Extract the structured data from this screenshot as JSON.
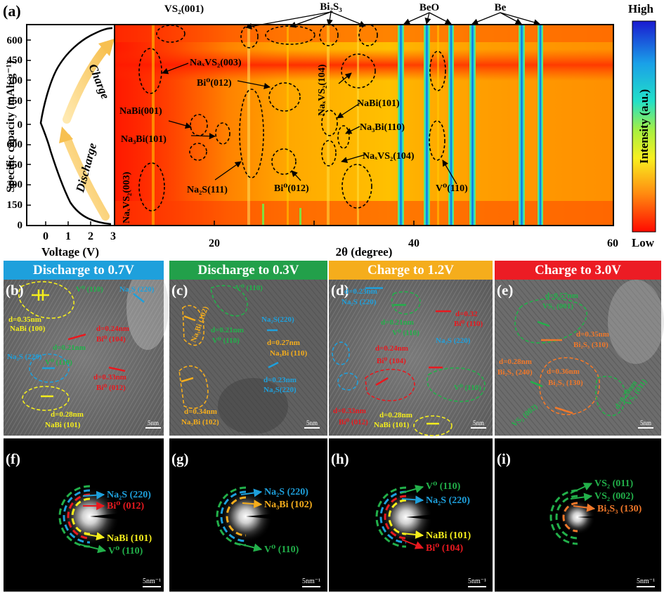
{
  "figure": {
    "panel_a": {
      "label": "(a)",
      "y_axis_label": "Specific capacity (mAh g⁻¹)",
      "y_ticks_upper": [
        "600",
        "450",
        "300",
        "150",
        "0"
      ],
      "y_ticks_lower": [
        "600",
        "450",
        "300",
        "150",
        "0"
      ],
      "voltage_axis_label": "Voltage (V)",
      "voltage_ticks": [
        "0",
        "1",
        "2",
        "3"
      ],
      "two_theta_label": "2θ (degree)",
      "two_theta_ticks": [
        "20",
        "40",
        "60"
      ],
      "arrow_labels": {
        "charge": "Charge",
        "discharge": "Discharge"
      },
      "colorbar": {
        "high": "High",
        "low": "Low",
        "label": "Intensity (a.u.)"
      },
      "top_labels": {
        "vs2": "VS₂(001)",
        "bi2s3": "Bi₂S₃",
        "beo": "BeO",
        "be": "Be"
      },
      "annotations": {
        "naxvs2_003_top": "NaₓVS₂(003)",
        "bi0_012_top": "Bi⁰(012)",
        "naxvs2_104_top": "NaₓVS₂(104)",
        "nabi_001": "NaBi(001)",
        "nabi_101": "NaBi(101)",
        "na3bi_101": "Na₃Bi(101)",
        "na3bi_110": "Na₃Bi(110)",
        "naxvs2_104_bot": "NaₓVS₂(104)",
        "na2s_111": "Na₂S(111)",
        "bi0_012_bot": "Bi⁰(012)",
        "v0_110": "V⁰(110)",
        "naxvs2_003_bot": "NaₓVS₂(003)"
      }
    },
    "banners": [
      {
        "label": "Discharge to 0.7V",
        "color": "#1ea0dc"
      },
      {
        "label": "Discharge to 0.3V",
        "color": "#22a04a"
      },
      {
        "label": "Charge to 1.2V",
        "color": "#f5ad1c"
      },
      {
        "label": "Charge to 3.0V",
        "color": "#ec1c24"
      }
    ],
    "tem_panels": [
      {
        "label": "(b)",
        "scale": "5nm",
        "annotations": [
          "d=0.35nm",
          "NaBi (100)",
          "Na₂S (220)",
          "d=0.21nm",
          "V⁰ (110)",
          "d=0.24nm",
          "Bi⁰ (104)",
          "d=0.33nm",
          "Bi⁰ (012)",
          "d=0.28nm",
          "NaBi (101)",
          "V⁰ (110)",
          "Na₂S (220)"
        ]
      },
      {
        "label": "(c)",
        "scale": "5nm",
        "annotations": [
          "Na₃Bi (102)",
          "d=0.21nm",
          "V⁰ (110)",
          "Na₂S(220)",
          "d=0.27nm",
          "Na₃Bi (110)",
          "d=0.23nm",
          "Na₂S(220)",
          "d=0.34nm",
          "Na₃Bi (102)",
          "V⁰ (110)"
        ]
      },
      {
        "label": "(d)",
        "scale": "5nm",
        "annotations": [
          "d=0.23nm",
          "Na₂S (220)",
          "d=0.21nm",
          "V⁰ (110)",
          "d=0.32",
          "Bi⁰ (110)",
          "d=0.24nm",
          "Bi⁰ (104)",
          "Na₂S (220)",
          "d=0.33nm",
          "Bi⁰ (012)",
          "d=0.28nm",
          "NaBi (101)",
          "V⁰ (110)"
        ]
      },
      {
        "label": "(e)",
        "scale": "5nm",
        "annotations": [
          "d=0.57nm",
          "VS₂ (001)",
          "d=0.35nm",
          "Bi₂S₃ (310)",
          "d=0.28nm",
          "Bi₂S₃ (240)",
          "d=0.36nm",
          "Bi₂S₃ (130)",
          "d=0.20nm",
          "VS₂ (011)",
          "VS₂ (002)"
        ]
      }
    ],
    "saed_panels": [
      {
        "label": "(f)",
        "scale": "5nm⁻¹",
        "rings": [
          {
            "text": "Na₂S (220)",
            "color": "#1ea0dc"
          },
          {
            "text": "Bi⁰ (012)",
            "color": "#e8191f"
          },
          {
            "text": "NaBi (101)",
            "color": "#f5ee1c"
          },
          {
            "text": "V⁰ (110)",
            "color": "#22b04a"
          }
        ]
      },
      {
        "label": "(g)",
        "scale": "5nm⁻¹",
        "rings": [
          {
            "text": "Na₂S (220)",
            "color": "#1ea0dc"
          },
          {
            "text": "Na₃Bi (102)",
            "color": "#f5ad1c"
          },
          {
            "text": "V⁰ (110)",
            "color": "#22b04a"
          }
        ]
      },
      {
        "label": "(h)",
        "scale": "5nm⁻¹",
        "rings": [
          {
            "text": "V⁰ (110)",
            "color": "#22b04a"
          },
          {
            "text": "Na₂S (220)",
            "color": "#1ea0dc"
          },
          {
            "text": "NaBi (101)",
            "color": "#f5ee1c"
          },
          {
            "text": "Bi⁰ (104)",
            "color": "#e8191f"
          }
        ]
      },
      {
        "label": "(i)",
        "scale": "5nm⁻¹",
        "rings": [
          {
            "text": "VS₂ (011)",
            "color": "#22b04a"
          },
          {
            "text": "VS₂ (002)",
            "color": "#22b04a"
          },
          {
            "text": "Bi₂S₃ (130)",
            "color": "#f0782a"
          }
        ]
      }
    ]
  }
}
